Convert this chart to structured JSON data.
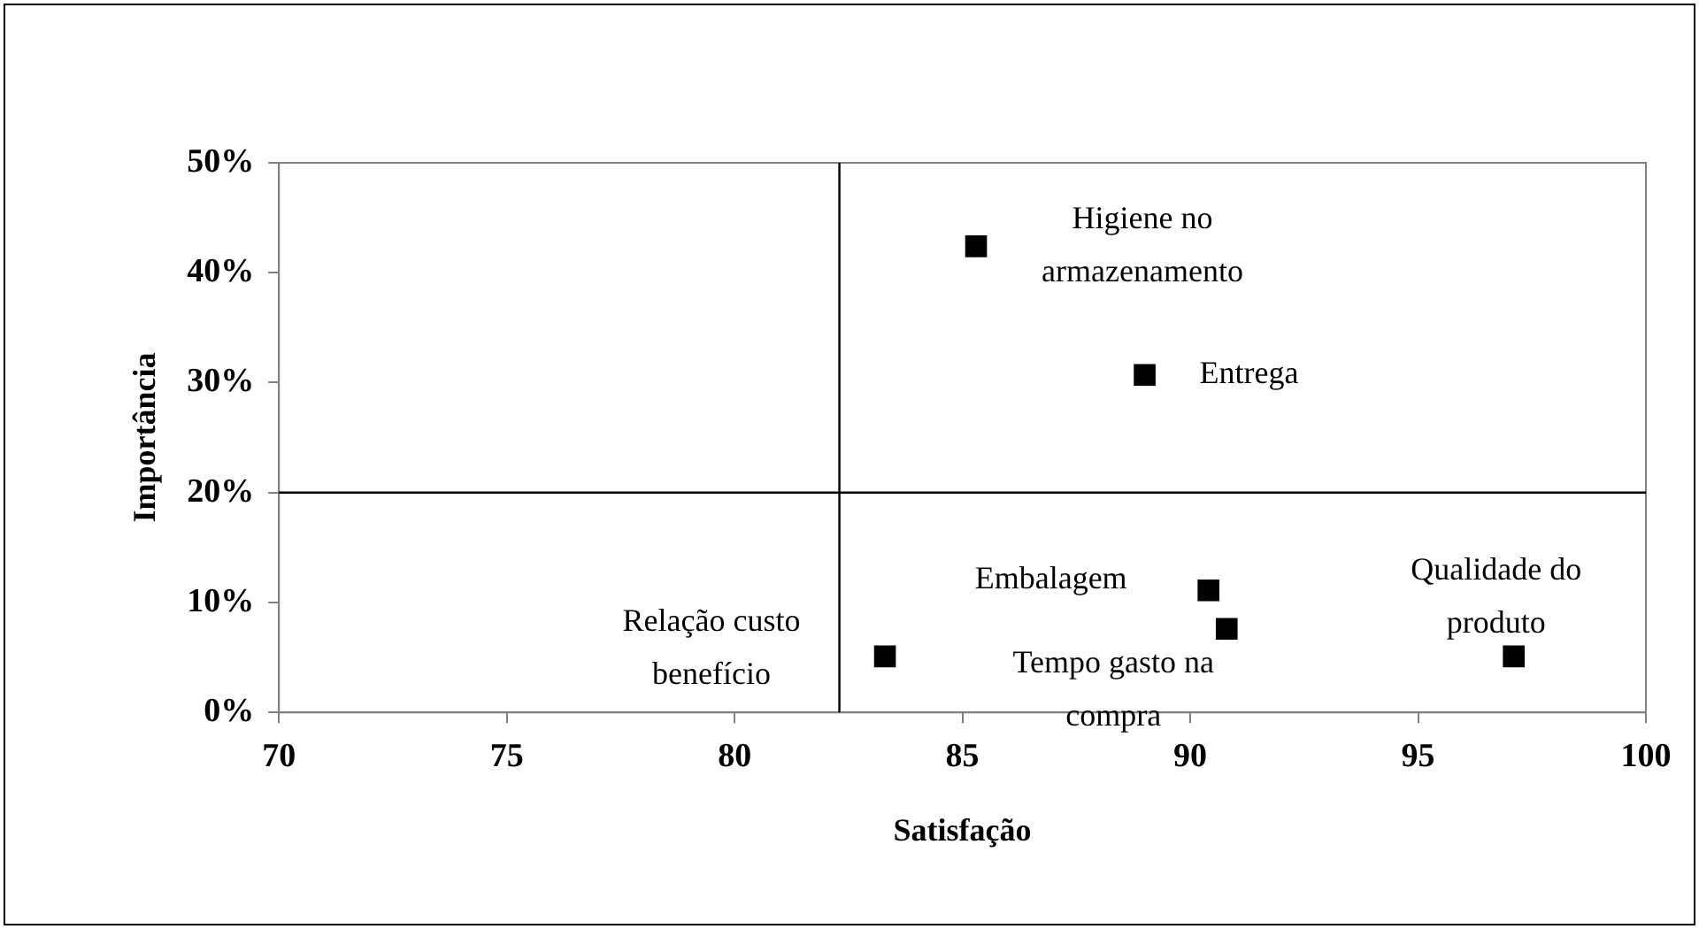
{
  "chart_data": {
    "type": "scatter",
    "xlabel": "Satisfação",
    "ylabel": "Importância",
    "x": [
      85.3,
      89.0,
      90.4,
      90.8,
      97.1,
      83.3
    ],
    "values": [
      42.4,
      30.7,
      11.1,
      7.6,
      5.1,
      5.1
    ],
    "color": "#000000",
    "marker": "square",
    "grid": false,
    "legend": false,
    "xlim": [
      70,
      100
    ],
    "xticks": [
      70,
      75,
      80,
      85,
      90,
      95,
      100
    ],
    "ylim": [
      0,
      50
    ],
    "yticks": [
      {
        "value": 0,
        "label": "0%"
      },
      {
        "value": 10,
        "label": "10%"
      },
      {
        "value": 20,
        "label": "20%"
      },
      {
        "value": 30,
        "label": "30%"
      },
      {
        "value": 40,
        "label": "40%"
      },
      {
        "value": 50,
        "label": "50%"
      }
    ],
    "ref_lines": [
      {
        "axis": "x",
        "value": 82.3,
        "color": "#000000"
      },
      {
        "axis": "y",
        "value": 20,
        "color": "#000000"
      }
    ],
    "annotations": [
      {
        "text": "Higiene no\narmazenamento",
        "x": 85.3,
        "y": 42.4
      },
      {
        "text": "Entrega",
        "x": 89.0,
        "y": 30.7
      },
      {
        "text": "Embalagem",
        "x": 90.4,
        "y": 11.1
      },
      {
        "text": "Tempo gasto na\ncompra",
        "x": 90.8,
        "y": 7.6
      },
      {
        "text": "Qualidade do\nproduto",
        "x": 97.1,
        "y": 5.1
      },
      {
        "text": "Relação custo\nbenefício",
        "x": 83.3,
        "y": 5.1
      }
    ]
  }
}
